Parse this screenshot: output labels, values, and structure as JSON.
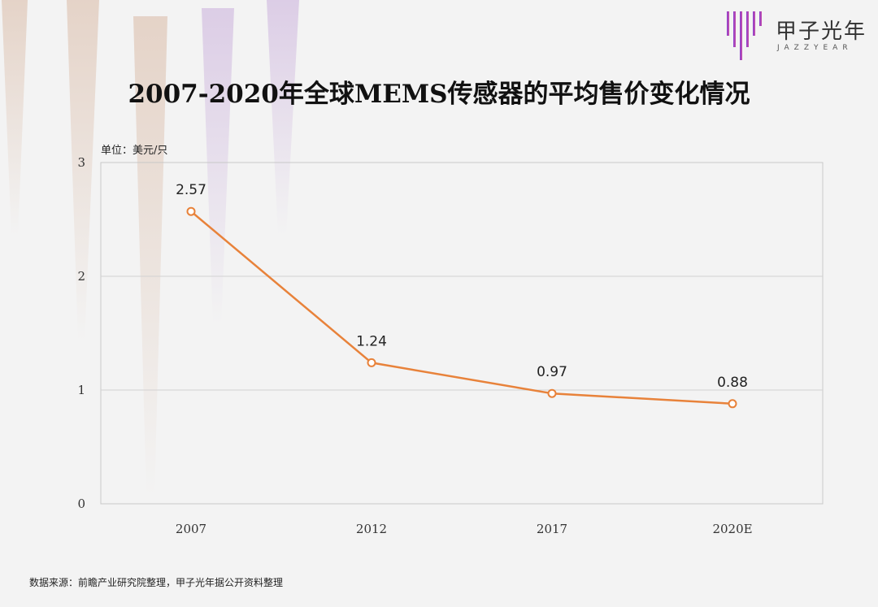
{
  "brand": {
    "name": "甲子光年",
    "sub": "JAZZYEAR"
  },
  "title": "2007-2020年全球MEMS传感器的平均售价变化情况",
  "unit_label": "单位：美元/只",
  "source": "数据来源：前瞻产业研究院整理，甲子光年据公开资料整理",
  "colors": {
    "line": "#e8823a",
    "marker_fill": "#ffffff",
    "grid": "#d2d2d2",
    "frame": "#c8c8c8"
  },
  "chart_data": {
    "type": "line",
    "categories": [
      "2007",
      "2012",
      "2017",
      "2020E"
    ],
    "values": [
      2.57,
      1.24,
      0.97,
      0.88
    ],
    "data_labels": [
      "2.57",
      "1.24",
      "0.97",
      "0.88"
    ],
    "yticks": [
      "0",
      "1",
      "2",
      "3"
    ],
    "ylim": [
      0,
      3
    ],
    "grid": true,
    "legend": "none"
  }
}
